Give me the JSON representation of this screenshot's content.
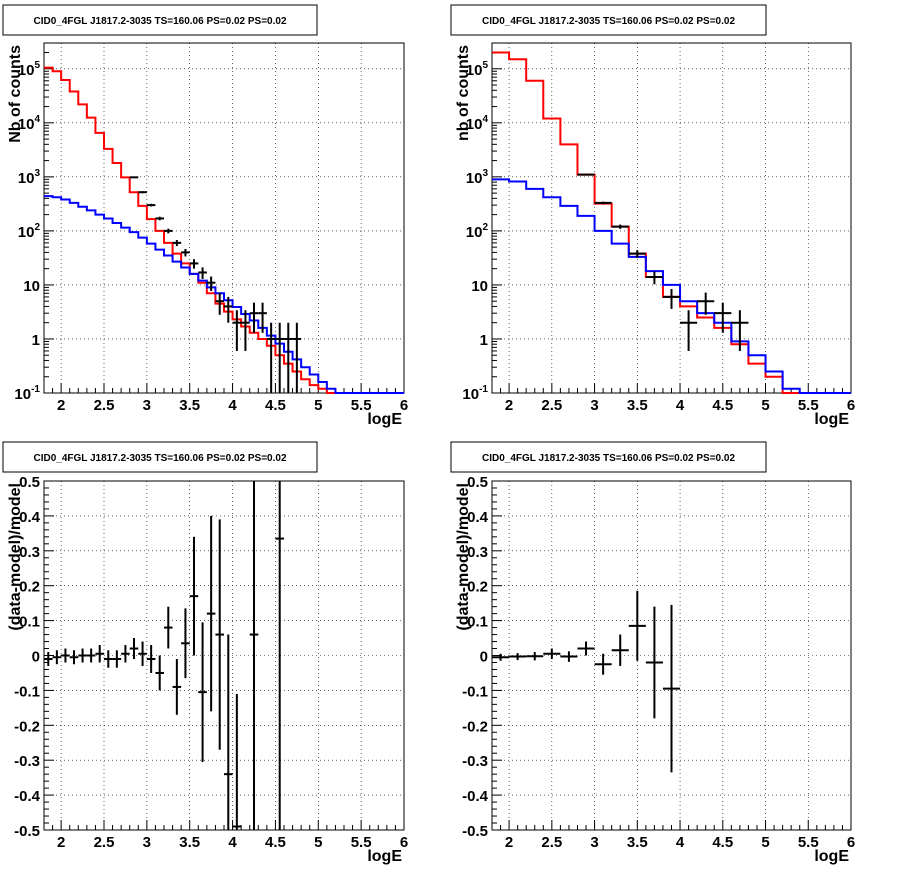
{
  "chart_data": [
    {
      "type": "histogram",
      "title": "CID0_4FGL J1817.2-3035 TS=160.06 PS=0.02 PS=0.02",
      "xlabel": "logE",
      "ylabel": "Nb of counts",
      "ylog": true,
      "xlim": [
        1.8,
        6
      ],
      "ylim": [
        0.1,
        300000
      ],
      "x_ticks": [
        "2",
        "2.5",
        "3",
        "3.5",
        "4",
        "4.5",
        "5",
        "5.5",
        "6"
      ],
      "y_ticks": [
        "10^-1",
        "1",
        "10",
        "10^2",
        "10^3",
        "10^4",
        "10^5"
      ],
      "grid": true,
      "series": [
        {
          "color": "#ff0000",
          "style": "step",
          "bin_edges": [
            1.8,
            1.9,
            2.0,
            2.1,
            2.2,
            2.3,
            2.4,
            2.5,
            2.6,
            2.7,
            2.8,
            2.9,
            3.0,
            3.1,
            3.2,
            3.3,
            3.4,
            3.5,
            3.6,
            3.7,
            3.8,
            3.9,
            4.0,
            4.1,
            4.2,
            4.3,
            4.4,
            4.5,
            4.6,
            4.7,
            4.8,
            4.9,
            5.0,
            5.1,
            5.2,
            5.3,
            5.4,
            5.5,
            5.6,
            5.7,
            5.8,
            5.9,
            6.0
          ],
          "values": [
            105000,
            90000,
            62000,
            38000,
            22000,
            12500,
            6500,
            3300,
            1800,
            980,
            520,
            290,
            165,
            100,
            60,
            38,
            25,
            16,
            11,
            7,
            4.5,
            3.2,
            2.3,
            1.7,
            1.3,
            1.0,
            0.75,
            0.5,
            0.35,
            0.25,
            0.18,
            0.14,
            0.12,
            0.1,
            0.1,
            0.1,
            0.1,
            0.1,
            0.1,
            0.1,
            0.1,
            0.1
          ]
        },
        {
          "color": "#0000ff",
          "style": "step",
          "bin_edges": [
            1.8,
            1.9,
            2.0,
            2.1,
            2.2,
            2.3,
            2.4,
            2.5,
            2.6,
            2.7,
            2.8,
            2.9,
            3.0,
            3.1,
            3.2,
            3.3,
            3.4,
            3.5,
            3.6,
            3.7,
            3.8,
            3.9,
            4.0,
            4.1,
            4.2,
            4.3,
            4.4,
            4.5,
            4.6,
            4.7,
            4.8,
            4.9,
            5.0,
            5.1,
            5.2,
            5.3,
            5.4,
            5.5,
            5.6,
            5.7,
            5.8,
            5.9,
            6.0
          ],
          "values": [
            440,
            420,
            380,
            330,
            280,
            240,
            200,
            170,
            140,
            115,
            95,
            75,
            58,
            45,
            35,
            27,
            21,
            16,
            12,
            9,
            7,
            5.2,
            3.9,
            2.9,
            2.2,
            1.6,
            1.15,
            0.82,
            0.58,
            0.42,
            0.3,
            0.22,
            0.16,
            0.12,
            0.1,
            0.1,
            0.1,
            0.1,
            0.1,
            0.1,
            0.1,
            0.1
          ]
        },
        {
          "color": "#000000",
          "style": "points",
          "x": [
            2.85,
            2.95,
            3.05,
            3.15,
            3.25,
            3.35,
            3.45,
            3.55,
            3.65,
            3.75,
            3.85,
            3.95,
            4.05,
            4.15,
            4.25,
            4.35,
            4.45,
            4.55,
            4.65,
            4.75
          ],
          "y": [
            980,
            520,
            300,
            170,
            100,
            60,
            40,
            25,
            17,
            11,
            5,
            4,
            2,
            2,
            3,
            3,
            1,
            1,
            1,
            1
          ],
          "xerr": [
            0.05,
            0.05,
            0.05,
            0.05,
            0.05,
            0.05,
            0.05,
            0.05,
            0.05,
            0.05,
            0.05,
            0.05,
            0.05,
            0.05,
            0.05,
            0.05,
            0.05,
            0.05,
            0.05,
            0.05
          ],
          "yerr_low": [
            30,
            22,
            17,
            13,
            10,
            7.7,
            6.3,
            5,
            4.1,
            3.3,
            2.2,
            2,
            1.4,
            1.4,
            1.7,
            1.7,
            0.99,
            0.99,
            0.99,
            0.99
          ],
          "yerr_high": [
            30,
            22,
            17,
            13,
            10,
            7.7,
            6.3,
            5,
            4.1,
            3.3,
            2.2,
            2,
            1.4,
            1.4,
            1.7,
            1.7,
            1.0,
            1.0,
            1.0,
            1.0
          ]
        }
      ]
    },
    {
      "type": "histogram",
      "title": "CID0_4FGL J1817.2-3035 TS=160.06 PS=0.02 PS=0.02",
      "xlabel": "logE",
      "ylabel": "nb of counts",
      "ylog": true,
      "xlim": [
        1.8,
        6
      ],
      "ylim": [
        0.1,
        300000
      ],
      "x_ticks": [
        "2",
        "2.5",
        "3",
        "3.5",
        "4",
        "4.5",
        "5",
        "5.5",
        "6"
      ],
      "y_ticks": [
        "10^-1",
        "1",
        "10",
        "10^2",
        "10^3",
        "10^4",
        "10^5"
      ],
      "grid": true,
      "series": [
        {
          "color": "#ff0000",
          "style": "step",
          "bin_edges": [
            1.8,
            2.0,
            2.2,
            2.4,
            2.6,
            2.8,
            3.0,
            3.2,
            3.4,
            3.6,
            3.8,
            4.0,
            4.2,
            4.4,
            4.6,
            4.8,
            5.0,
            5.2,
            5.4,
            5.6,
            5.8,
            6.0
          ],
          "values": [
            200000,
            150000,
            60000,
            12000,
            4000,
            1100,
            320,
            120,
            38,
            14,
            6,
            4,
            2.5,
            1.6,
            0.8,
            0.35,
            0.2,
            0.1,
            0.1,
            0.1,
            0.1
          ]
        },
        {
          "color": "#0000ff",
          "style": "step",
          "bin_edges": [
            1.8,
            2.0,
            2.2,
            2.4,
            2.6,
            2.8,
            3.0,
            3.2,
            3.4,
            3.6,
            3.8,
            4.0,
            4.2,
            4.4,
            4.6,
            4.8,
            5.0,
            5.2,
            5.4,
            5.6,
            5.8,
            6.0
          ],
          "values": [
            900,
            820,
            600,
            420,
            290,
            190,
            100,
            58,
            33,
            18,
            10,
            5,
            3,
            2,
            0.9,
            0.5,
            0.25,
            0.12,
            0.1,
            0.1,
            0.1
          ]
        },
        {
          "color": "#000000",
          "style": "points",
          "x": [
            2.9,
            3.1,
            3.3,
            3.5,
            3.7,
            3.9,
            4.1,
            4.3,
            4.5,
            4.7
          ],
          "y": [
            1100,
            330,
            120,
            38,
            14,
            6,
            2,
            5,
            3,
            2
          ],
          "xerr": [
            0.1,
            0.1,
            0.1,
            0.1,
            0.1,
            0.1,
            0.1,
            0.1,
            0.1,
            0.1
          ],
          "yerr_low": [
            33,
            18,
            11,
            6.2,
            3.7,
            2.4,
            1.4,
            2.2,
            1.7,
            1.4
          ],
          "yerr_high": [
            33,
            18,
            11,
            6.2,
            3.7,
            2.4,
            1.4,
            2.2,
            1.7,
            1.4
          ]
        }
      ]
    },
    {
      "type": "scatter",
      "title": "CID0_4FGL J1817.2-3035 TS=160.06 PS=0.02 PS=0.02",
      "xlabel": "logE",
      "ylabel": "(data-model)/model",
      "xlim": [
        1.8,
        6
      ],
      "ylim": [
        -0.5,
        0.5
      ],
      "x_ticks": [
        "2",
        "2.5",
        "3",
        "3.5",
        "4",
        "4.5",
        "5",
        "5.5",
        "6"
      ],
      "y_ticks": [
        "-0.5",
        "-0.4",
        "-0.3",
        "-0.2",
        "-0.1",
        "0",
        "0.1",
        "0.2",
        "0.3",
        "0.4",
        "0.5"
      ],
      "grid": true,
      "series": [
        {
          "color": "#000000",
          "style": "points",
          "x": [
            1.85,
            1.95,
            2.05,
            2.15,
            2.25,
            2.35,
            2.45,
            2.55,
            2.65,
            2.75,
            2.85,
            2.95,
            3.05,
            3.15,
            3.25,
            3.35,
            3.45,
            3.55,
            3.65,
            3.75,
            3.85,
            3.95,
            4.05,
            4.25,
            4.55
          ],
          "y": [
            -0.01,
            -0.005,
            0,
            -0.005,
            0,
            0,
            0.005,
            -0.01,
            -0.01,
            0.005,
            0.02,
            0.005,
            -0.01,
            -0.05,
            0.08,
            -0.09,
            0.035,
            0.17,
            -0.105,
            0.12,
            0.06,
            -0.34,
            -0.49,
            0.06,
            0.335
          ],
          "xerr": [
            0.05,
            0.05,
            0.05,
            0.05,
            0.05,
            0.05,
            0.05,
            0.05,
            0.05,
            0.05,
            0.05,
            0.05,
            0.05,
            0.05,
            0.05,
            0.05,
            0.05,
            0.05,
            0.05,
            0.05,
            0.05,
            0.05,
            0.05,
            0.05,
            0.05
          ],
          "yerr": [
            0.02,
            0.02,
            0.02,
            0.02,
            0.02,
            0.02,
            0.025,
            0.025,
            0.025,
            0.025,
            0.03,
            0.035,
            0.04,
            0.05,
            0.06,
            0.08,
            0.1,
            0.17,
            0.2,
            0.28,
            0.33,
            0.4,
            0.38,
            0.9,
            0.9
          ]
        }
      ]
    },
    {
      "type": "scatter",
      "title": "CID0_4FGL J1817.2-3035 TS=160.06 PS=0.02 PS=0.02",
      "xlabel": "logE",
      "ylabel": "(data-model)/model",
      "xlim": [
        1.8,
        6
      ],
      "ylim": [
        -0.5,
        0.5
      ],
      "x_ticks": [
        "2",
        "2.5",
        "3",
        "3.5",
        "4",
        "4.5",
        "5",
        "5.5",
        "6"
      ],
      "y_ticks": [
        "-0.5",
        "-0.4",
        "-0.3",
        "-0.2",
        "-0.1",
        "0",
        "0.1",
        "0.2",
        "0.3",
        "0.4",
        "0.5"
      ],
      "grid": true,
      "series": [
        {
          "color": "#000000",
          "style": "points",
          "x": [
            1.9,
            2.1,
            2.3,
            2.5,
            2.7,
            2.9,
            3.1,
            3.3,
            3.5,
            3.7,
            3.9
          ],
          "y": [
            -0.005,
            -0.003,
            -0.002,
            0.005,
            -0.003,
            0.02,
            -0.025,
            0.015,
            0.085,
            -0.02,
            -0.095
          ],
          "xerr": [
            0.1,
            0.1,
            0.1,
            0.1,
            0.1,
            0.1,
            0.1,
            0.1,
            0.1,
            0.1,
            0.1
          ],
          "yerr": [
            0.01,
            0.01,
            0.012,
            0.015,
            0.015,
            0.02,
            0.03,
            0.045,
            0.1,
            0.16,
            0.24
          ]
        }
      ]
    }
  ]
}
